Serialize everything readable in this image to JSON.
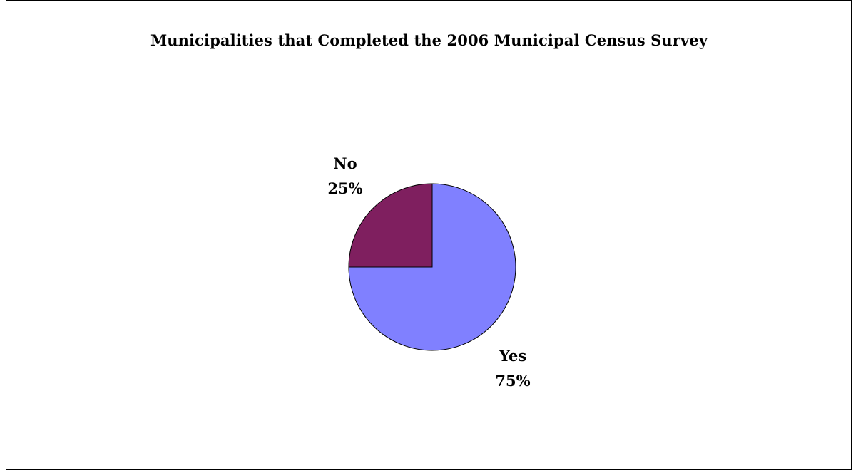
{
  "chart_data": {
    "type": "pie",
    "title": "Municipalities that Completed the 2006 Municipal Census Survey",
    "categories": [
      "Yes",
      "No"
    ],
    "values": [
      75,
      25
    ],
    "value_labels": [
      "75%",
      "25%"
    ],
    "colors": [
      "#8080FF",
      "#7F1F5F"
    ],
    "legend": "none",
    "start": "12 o'clock, clockwise"
  }
}
